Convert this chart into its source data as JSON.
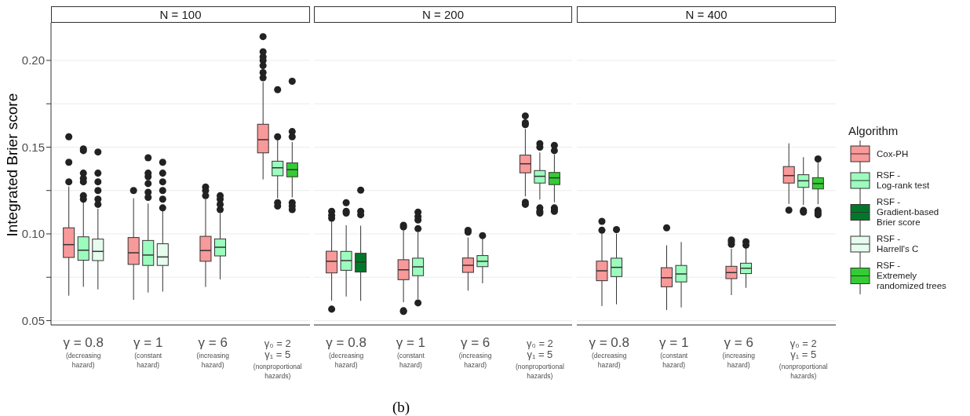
{
  "chart_data": [
    {
      "type": "box",
      "title": "N = 100",
      "ylabel": "Integrated Brier score",
      "categories": [
        "γ = 0.8\n(decreasing\nhazard)",
        "γ = 1\n(constant\nhazard)",
        "γ = 6\n(increasing\nhazard)",
        "γ₀ = 2\nγ₁ = 5\n(nonproportional\nhazards)"
      ],
      "ylim": [
        0.0475,
        0.2217
      ],
      "yticks": [
        0.05,
        {
          "value": 0.075,
          "label": null
        },
        {
          "value": 0.1,
          "label": "0.10"
        },
        {
          "value": 0.125,
          "label": null
        },
        0.15,
        {
          "value": 0.175,
          "label": null
        },
        {
          "value": 0.2,
          "label": "0.20"
        }
      ],
      "grid": "y",
      "series": [
        {
          "color": "#f8999a",
          "boxes": [
            {
              "low": 0.0644,
              "q1": 0.0864,
              "median": 0.0938,
              "q3": 0.1035,
              "high": 0.1273,
              "outliers": [
                0.156,
                0.1413,
                0.13
              ]
            },
            {
              "low": 0.062,
              "q1": 0.0824,
              "median": 0.0891,
              "q3": 0.0979,
              "high": 0.1205,
              "outliers": [
                0.125
              ]
            },
            {
              "low": 0.0694,
              "q1": 0.0842,
              "median": 0.0904,
              "q3": 0.0986,
              "high": 0.12,
              "outliers": [
                0.127,
                0.125,
                0.122
              ]
            },
            {
              "low": 0.1314,
              "q1": 0.1467,
              "median": 0.1543,
              "q3": 0.1632,
              "high": 0.1876,
              "outliers": [
                0.2137,
                0.205,
                0.202,
                0.2,
                0.197,
                0.193,
                0.19
              ]
            }
          ]
        },
        {
          "color": "#9cfcbd",
          "boxes": [
            {
              "low": 0.0695,
              "q1": 0.0848,
              "median": 0.0906,
              "q3": 0.0983,
              "high": 0.119,
              "outliers": [
                0.149,
                0.148,
                0.135,
                0.132,
                0.13,
                0.122,
                0.12
              ]
            },
            {
              "low": 0.0662,
              "q1": 0.0818,
              "median": 0.0878,
              "q3": 0.0962,
              "high": 0.1175,
              "outliers": [
                0.1439,
                0.135,
                0.133,
                0.129,
                0.124,
                0.121
              ]
            },
            {
              "low": 0.0738,
              "q1": 0.0873,
              "median": 0.0923,
              "q3": 0.0971,
              "high": 0.1119,
              "outliers": [
                0.122,
                0.12,
                0.117,
                0.114
              ]
            },
            {
              "low": 0.1205,
              "q1": 0.1335,
              "median": 0.1381,
              "q3": 0.1419,
              "high": 0.1552,
              "outliers": [
                0.1831,
                0.156,
                0.118,
                0.116
              ]
            }
          ]
        },
        {
          "color": "#e6fdee",
          "boxes": [
            {
              "low": 0.068,
              "q1": 0.0846,
              "median": 0.0899,
              "q3": 0.097,
              "high": 0.1145,
              "outliers": [
                0.1472,
                0.135,
                0.13,
                0.125,
                0.12,
                0.117
              ]
            },
            {
              "low": 0.0667,
              "q1": 0.0818,
              "median": 0.0867,
              "q3": 0.0943,
              "high": 0.1133,
              "outliers": [
                0.1413,
                0.135,
                0.13,
                0.125,
                0.12,
                0.115
              ]
            },
            null,
            null
          ]
        },
        {
          "color": "#33cc33",
          "boxes": [
            null,
            null,
            null,
            {
              "low": 0.121,
              "q1": 0.1329,
              "median": 0.137,
              "q3": 0.1409,
              "high": 0.1529,
              "outliers": [
                0.188,
                0.159,
                0.156,
                0.118,
                0.116,
                0.114
              ]
            }
          ]
        }
      ]
    },
    {
      "type": "box",
      "title": "N = 200",
      "categories": [
        "γ = 0.8\n(decreasing\nhazard)",
        "γ = 1\n(constant\nhazard)",
        "γ = 6\n(increasing\nhazard)",
        "γ₀ = 2\nγ₁ = 5\n(nonproportional\nhazards)"
      ],
      "ylim": [
        0.0475,
        0.2217
      ],
      "yticks": [
        0.05,
        {
          "value": 0.075,
          "label": null
        },
        0.1,
        {
          "value": 0.125,
          "label": null
        },
        0.15,
        {
          "value": 0.175,
          "label": null
        },
        0.2
      ],
      "grid": "y",
      "tick_labels": "x",
      "annotations": [
        "(b)"
      ],
      "series": [
        {
          "color": "#f8999a",
          "boxes": [
            {
              "low": 0.0615,
              "q1": 0.0775,
              "median": 0.0842,
              "q3": 0.09,
              "high": 0.1077,
              "outliers": [
                0.113,
                0.1107,
                0.109,
                0.0566
              ]
            },
            {
              "low": 0.0606,
              "q1": 0.0736,
              "median": 0.0793,
              "q3": 0.0851,
              "high": 0.1019,
              "outliers": [
                0.105,
                0.104,
                0.0557,
                0.0553
              ]
            },
            {
              "low": 0.0673,
              "q1": 0.0778,
              "median": 0.0819,
              "q3": 0.0861,
              "high": 0.0979,
              "outliers": [
                0.102,
                0.101
              ]
            },
            {
              "low": 0.1216,
              "q1": 0.1352,
              "median": 0.1404,
              "q3": 0.1454,
              "high": 0.1605,
              "outliers": [
                0.168,
                0.164,
                0.163,
                0.1182,
                0.117
              ]
            }
          ]
        },
        {
          "color": "#9cfcbd",
          "boxes": [
            {
              "low": 0.0639,
              "q1": 0.079,
              "median": 0.0846,
              "q3": 0.0899,
              "high": 0.105,
              "outliers": [
                0.118,
                0.113,
                0.112
              ]
            },
            {
              "low": 0.0624,
              "q1": 0.0759,
              "median": 0.081,
              "q3": 0.086,
              "high": 0.1009,
              "outliers": [
                0.1125,
                0.11,
                0.108,
                0.103,
                0.0602
              ]
            },
            {
              "low": 0.0715,
              "q1": 0.0811,
              "median": 0.0842,
              "q3": 0.0875,
              "high": 0.0986,
              "outliers": [
                0.099
              ]
            },
            {
              "low": 0.1198,
              "q1": 0.1293,
              "median": 0.1332,
              "q3": 0.1365,
              "high": 0.1469,
              "outliers": [
                0.152,
                0.15,
                0.115,
                0.113,
                0.112
              ]
            }
          ]
        },
        {
          "color": "#00782a",
          "boxes": [
            {
              "low": 0.0614,
              "q1": 0.078,
              "median": 0.0838,
              "q3": 0.0888,
              "high": 0.1047,
              "outliers": [
                0.1252,
                0.113,
                0.111
              ]
            },
            null,
            null,
            null
          ]
        },
        {
          "color": "#33cc33",
          "boxes": [
            null,
            null,
            null,
            {
              "low": 0.1182,
              "q1": 0.1284,
              "median": 0.1323,
              "q3": 0.1354,
              "high": 0.1457,
              "outliers": [
                0.151,
                0.148,
                0.115,
                0.114,
                0.113
              ]
            }
          ]
        }
      ]
    },
    {
      "type": "box",
      "title": "N = 400",
      "categories": [
        "γ = 0.8\n(decreasing\nhazard)",
        "γ = 1\n(constant\nhazard)",
        "γ = 6\n(increasing\nhazard)",
        "γ₀ = 2\nγ₁ = 5\n(nonproportional\nhazards)"
      ],
      "ylim": [
        0.0475,
        0.2217
      ],
      "yticks": [
        0.05,
        {
          "value": 0.075,
          "label": null
        },
        0.1,
        {
          "value": 0.125,
          "label": null
        },
        0.15,
        {
          "value": 0.175,
          "label": null
        },
        0.2
      ],
      "grid": "y",
      "tick_labels": "x",
      "legend": "right",
      "legend_title": "Algorithm",
      "series": [
        {
          "name": "Cox-PH",
          "color": "#f8999a",
          "boxes": [
            {
              "low": 0.0584,
              "q1": 0.073,
              "median": 0.0787,
              "q3": 0.0843,
              "high": 0.1005,
              "outliers": [
                0.1072,
                0.1021
              ]
            },
            {
              "low": 0.0561,
              "q1": 0.0695,
              "median": 0.0747,
              "q3": 0.0805,
              "high": 0.0934,
              "outliers": [
                0.1035
              ]
            },
            {
              "low": 0.0647,
              "q1": 0.0742,
              "median": 0.0777,
              "q3": 0.0813,
              "high": 0.0914,
              "outliers": [
                0.0965,
                0.0955,
                0.094
              ]
            },
            {
              "low": 0.1172,
              "q1": 0.1293,
              "median": 0.1336,
              "q3": 0.1388,
              "high": 0.1522,
              "outliers": [
                0.1137
              ]
            }
          ]
        },
        {
          "name": "RSF -\nLog-rank test",
          "color": "#9cfcbd",
          "boxes": [
            {
              "low": 0.0594,
              "q1": 0.0754,
              "median": 0.0807,
              "q3": 0.086,
              "high": 0.1001,
              "outliers": [
                0.1025
              ]
            },
            {
              "low": 0.0576,
              "q1": 0.0723,
              "median": 0.0769,
              "q3": 0.0818,
              "high": 0.0953
            },
            {
              "low": 0.0689,
              "q1": 0.0771,
              "median": 0.0802,
              "q3": 0.0831,
              "high": 0.0926,
              "outliers": [
                0.0955,
                0.0935
              ]
            },
            {
              "low": 0.1167,
              "q1": 0.1268,
              "median": 0.1306,
              "q3": 0.1341,
              "high": 0.1442,
              "outliers": [
                0.1135,
                0.1125
              ]
            }
          ]
        },
        {
          "name": "RSF -\nGradient-based\nBrier score",
          "color": "#00782a",
          "boxes": [
            null,
            null,
            null,
            null
          ]
        },
        {
          "name": "RSF -\nHarrell's C",
          "color": "#e6fdee",
          "boxes": [
            null,
            null,
            null,
            null
          ]
        },
        {
          "name": "RSF -\nExtremely\nrandomized trees",
          "color": "#33cc33",
          "boxes": [
            null,
            null,
            null,
            {
              "low": 0.1171,
              "q1": 0.1259,
              "median": 0.129,
              "q3": 0.1324,
              "high": 0.1412,
              "outliers": [
                0.1432,
                0.1135,
                0.112,
                0.111
              ]
            }
          ]
        }
      ]
    }
  ]
}
